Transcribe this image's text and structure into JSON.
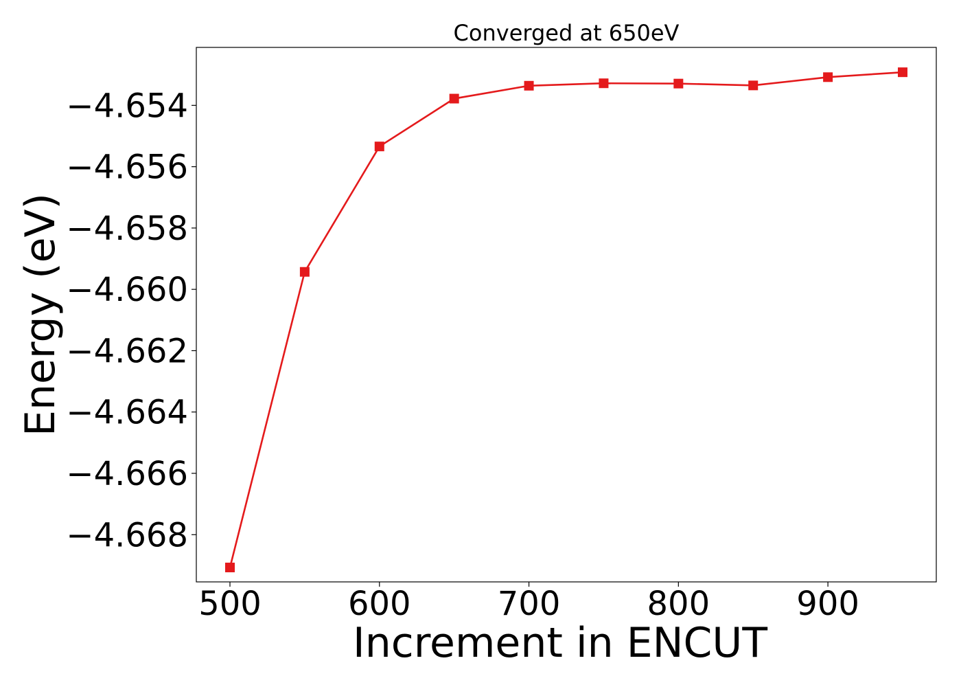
{
  "chart_data": {
    "type": "line",
    "title": "Converged at 650eV",
    "xlabel": "Increment in ENCUT",
    "ylabel": "Energy (eV)",
    "x": [
      500,
      550,
      600,
      650,
      700,
      750,
      800,
      850,
      900,
      950
    ],
    "series": [
      {
        "values": [
          -4.66907,
          -4.65943,
          -4.65534,
          -4.65378,
          -4.65336,
          -4.65328,
          -4.65329,
          -4.65335,
          -4.65308,
          -4.65292
        ],
        "color": "#e41a1c",
        "marker": "square"
      }
    ],
    "xlim": [
      477.5,
      972.5
    ],
    "ylim": [
      -4.66954,
      -4.65211
    ],
    "xticks": [
      500,
      600,
      700,
      800,
      900
    ],
    "xtick_labels": [
      "500",
      "600",
      "700",
      "800",
      "900"
    ],
    "yticks": [
      -4.668,
      -4.666,
      -4.664,
      -4.662,
      -4.66,
      -4.658,
      -4.656,
      -4.654
    ],
    "ytick_labels": [
      "−4.668",
      "−4.666",
      "−4.664",
      "−4.662",
      "−4.660",
      "−4.658",
      "−4.656",
      "−4.654"
    ],
    "grid": false
  }
}
